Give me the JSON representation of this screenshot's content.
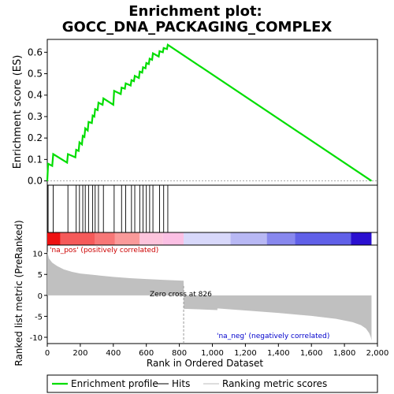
{
  "chart_data": {
    "type": "line",
    "title_line1": "Enrichment plot:",
    "title_line2": "GOCC_DNA_PACKAGING_COMPLEX",
    "es_ylabel": "Enrichment score (ES)",
    "metric_ylabel": "Ranked list metric (PreRanked)",
    "xlabel": "Rank in Ordered Dataset",
    "xlim": [
      0,
      2000
    ],
    "x_ticks": [
      0,
      200,
      400,
      600,
      800,
      1000,
      1200,
      1400,
      1600,
      1800,
      2000
    ],
    "x_tick_labels": [
      "0",
      "200",
      "400",
      "600",
      "800",
      "1,000",
      "1,200",
      "1,400",
      "1,600",
      "1,800",
      "2,000"
    ],
    "es_ylim": [
      -0.02,
      0.66
    ],
    "es_ticks": [
      0.0,
      0.1,
      0.2,
      0.3,
      0.4,
      0.5,
      0.6
    ],
    "es_tick_labels": [
      "0.0",
      "0.1",
      "0.2",
      "0.3",
      "0.4",
      "0.5",
      "0.6"
    ],
    "metric_ylim": [
      -11.5,
      12
    ],
    "metric_ticks": [
      -10,
      -5,
      0,
      5,
      10
    ],
    "metric_tick_labels": [
      "-10",
      "-5",
      "0",
      "5",
      "10"
    ],
    "total_ranks": 1964,
    "zero_cross": 826,
    "zero_cross_label": "Zero cross at 826",
    "pos_label": "'na_pos' (positively correlated)",
    "neg_label": "'na_neg' (negatively correlated)",
    "hits": [
      5,
      36,
      125,
      175,
      195,
      215,
      230,
      250,
      275,
      290,
      310,
      340,
      405,
      450,
      475,
      510,
      530,
      560,
      580,
      600,
      620,
      640,
      680,
      705,
      730
    ],
    "es_profile": {
      "x": [
        0,
        5,
        30,
        36,
        120,
        125,
        170,
        175,
        190,
        195,
        210,
        215,
        225,
        230,
        245,
        250,
        270,
        275,
        285,
        290,
        305,
        310,
        335,
        340,
        400,
        405,
        445,
        450,
        470,
        475,
        505,
        510,
        525,
        530,
        555,
        560,
        575,
        580,
        595,
        600,
        615,
        620,
        635,
        640,
        675,
        680,
        700,
        705,
        725,
        730,
        1964
      ],
      "y": [
        0.0,
        0.08,
        0.07,
        0.125,
        0.085,
        0.125,
        0.11,
        0.145,
        0.14,
        0.18,
        0.17,
        0.21,
        0.205,
        0.245,
        0.235,
        0.275,
        0.27,
        0.305,
        0.3,
        0.335,
        0.33,
        0.365,
        0.355,
        0.385,
        0.355,
        0.42,
        0.405,
        0.435,
        0.43,
        0.455,
        0.445,
        0.47,
        0.465,
        0.49,
        0.48,
        0.51,
        0.505,
        0.53,
        0.525,
        0.55,
        0.545,
        0.57,
        0.565,
        0.595,
        0.58,
        0.605,
        0.6,
        0.62,
        0.615,
        0.635,
        0.0
      ]
    },
    "metric_profile": {
      "x": [
        0,
        10,
        30,
        60,
        100,
        150,
        200,
        300,
        400,
        500,
        600,
        700,
        826,
        827,
        1030,
        1031,
        1200,
        1400,
        1600,
        1750,
        1850,
        1900,
        1930,
        1950,
        1960,
        1964
      ],
      "y": [
        10.5,
        8.8,
        7.8,
        7.0,
        6.2,
        5.6,
        5.2,
        4.8,
        4.4,
        4.1,
        3.9,
        3.7,
        3.5,
        -3.2,
        -3.5,
        -3.1,
        -3.6,
        -4.2,
        -4.9,
        -5.6,
        -6.4,
        -7.1,
        -7.9,
        -9.0,
        -10.0,
        -10.8
      ]
    },
    "color_bar": {
      "segments": [
        {
          "from": 0,
          "to": 80,
          "color": "#ee1111"
        },
        {
          "from": 80,
          "to": 290,
          "color": "#f55a5a"
        },
        {
          "from": 290,
          "to": 410,
          "color": "#f77777"
        },
        {
          "from": 410,
          "to": 560,
          "color": "#fa9a9a"
        },
        {
          "from": 560,
          "to": 700,
          "color": "#fcc4dc"
        },
        {
          "from": 700,
          "to": 826,
          "color": "#fbc0e4"
        },
        {
          "from": 826,
          "to": 1110,
          "color": "#d8d8fa"
        },
        {
          "from": 1110,
          "to": 1330,
          "color": "#b8b8f4"
        },
        {
          "from": 1330,
          "to": 1500,
          "color": "#8888ee"
        },
        {
          "from": 1500,
          "to": 1840,
          "color": "#6060e8"
        },
        {
          "from": 1840,
          "to": 1964,
          "color": "#2a10d0"
        }
      ]
    },
    "legend": [
      {
        "label": "Enrichment profile",
        "color": "#00dd00"
      },
      {
        "label": "Hits",
        "color": "#000000"
      },
      {
        "label": "Ranking metric scores",
        "color": "#bbbbbb"
      }
    ],
    "colors": {
      "es_line": "#00dd00",
      "hit": "#000000",
      "metric_fill": "#c0c0c0",
      "pos_text": "#cc0000",
      "neg_text": "#0000cc"
    }
  }
}
